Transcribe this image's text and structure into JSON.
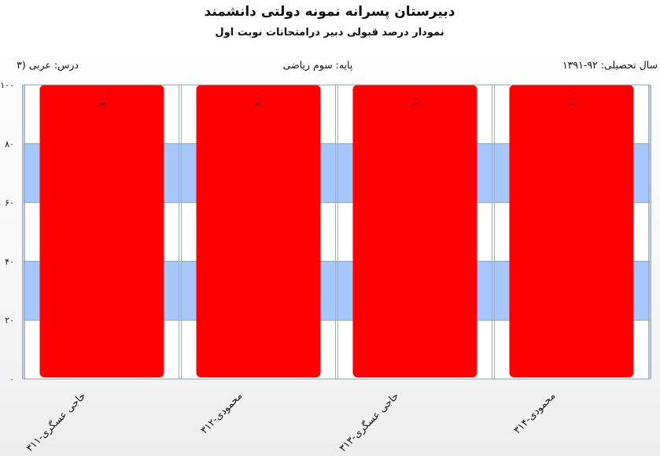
{
  "header": {
    "title": "دبیرستان پسرانه نمونه دولتی دانشمند",
    "subtitle": "نمودار درصد قبولی دبیر درامتحانات نوبت اول"
  },
  "info": {
    "year": "سال تحصیلی: ۹۲-۱۳۹۱",
    "grade": "پایه: سوم ریاضی",
    "course": "درس: عربی  (۳"
  },
  "chart_data": {
    "type": "bar",
    "categories": [
      "حاجی عسگری-۳۱۱",
      "محمودی-۳۱۲",
      "حاجی عسگری-۳۱۳",
      "محمودی-۳۱۴"
    ],
    "values": [
      100,
      100,
      100,
      100
    ],
    "value_labels": [
      "۱۰۰",
      "۱۰۰",
      "۱۰۰",
      "۱۰۰"
    ],
    "ylim": [
      0,
      100
    ],
    "yticks": [
      0,
      20,
      40,
      60,
      80,
      100
    ],
    "ytick_labels": [
      "۰",
      "۲۰",
      "۴۰",
      "۶۰",
      "۸۰",
      "۱۰۰"
    ],
    "bar_color": "#ff0000",
    "band_color": "#a6c8ff",
    "grid": true,
    "legend": "none"
  }
}
